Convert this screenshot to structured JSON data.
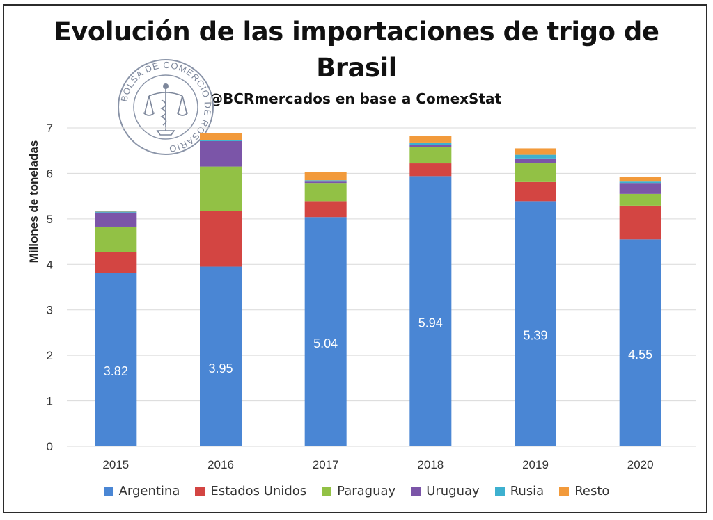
{
  "colors": {
    "Argentina": "#4a86d4",
    "Estados Unidos": "#d34542",
    "Paraguay": "#92c145",
    "Uruguay": "#7b55a8",
    "Rusia": "#3db0cf",
    "Resto": "#f29a3b",
    "grid": "#d9d9d9"
  },
  "seal": {
    "text": "BOLSA DE COMERCIO DE ROSARIO"
  },
  "chart_data": {
    "type": "bar",
    "stacked": true,
    "title_line1": "Evolución de las importaciones de trigo de",
    "title_line2": "Brasil",
    "subtitle": "@BCRmercados en base a ComexStat",
    "xlabel": "",
    "ylabel": "Millones de toneladas",
    "ylim": [
      0,
      7
    ],
    "yticks": [
      "0",
      "1",
      "2",
      "3",
      "4",
      "5",
      "6",
      "7"
    ],
    "grid": true,
    "legend_position": "bottom",
    "categories": [
      "2015",
      "2016",
      "2017",
      "2018",
      "2019",
      "2020"
    ],
    "series": [
      {
        "name": "Argentina",
        "values": [
          3.82,
          3.95,
          5.04,
          5.94,
          5.39,
          4.55
        ],
        "labels": [
          "3.82",
          "3.95",
          "5.04",
          "5.94",
          "5.39",
          "4.55"
        ]
      },
      {
        "name": "Estados Unidos",
        "values": [
          0.45,
          1.22,
          0.35,
          0.28,
          0.42,
          0.74
        ]
      },
      {
        "name": "Paraguay",
        "values": [
          0.56,
          0.98,
          0.4,
          0.36,
          0.41,
          0.26
        ]
      },
      {
        "name": "Uruguay",
        "values": [
          0.31,
          0.56,
          0.03,
          0.04,
          0.11,
          0.24
        ]
      },
      {
        "name": "Rusia",
        "values": [
          0.02,
          0.02,
          0.03,
          0.06,
          0.08,
          0.03
        ]
      },
      {
        "name": "Resto",
        "values": [
          0.02,
          0.15,
          0.18,
          0.15,
          0.14,
          0.1
        ]
      }
    ]
  }
}
